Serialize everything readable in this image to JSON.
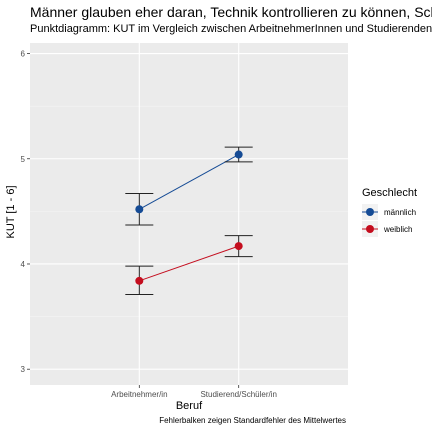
{
  "chart_data": {
    "type": "line",
    "title": "Männer glauben eher daran, Technik kontrollieren zu können, Schüle",
    "subtitle": "Punktdiagramm: KUT im Vergleich zwischen ArbeitnehmerInnen und Studierenden",
    "xlabel": "Beruf",
    "ylabel": "KUT [1 - 6]",
    "caption": "Fehlerbalken zeigen Standardfehler des Mittelwertes",
    "categories": [
      "Arbeitnehmer/in",
      "Studierend/Schüler/in"
    ],
    "ylim": [
      2.85,
      6.1
    ],
    "yticks": [
      3,
      4,
      5,
      6
    ],
    "grid": true,
    "legend_title": "Geschlecht",
    "legend_position": "right",
    "series": [
      {
        "name": "männlich",
        "color": "#154b95",
        "values": [
          4.52,
          5.04
        ],
        "error_low": [
          4.37,
          4.97
        ],
        "error_high": [
          4.67,
          5.11
        ]
      },
      {
        "name": "weiblich",
        "color": "#c40d1e",
        "values": [
          3.84,
          4.17
        ],
        "error_low": [
          3.71,
          4.07
        ],
        "error_high": [
          3.98,
          4.27
        ]
      }
    ]
  }
}
